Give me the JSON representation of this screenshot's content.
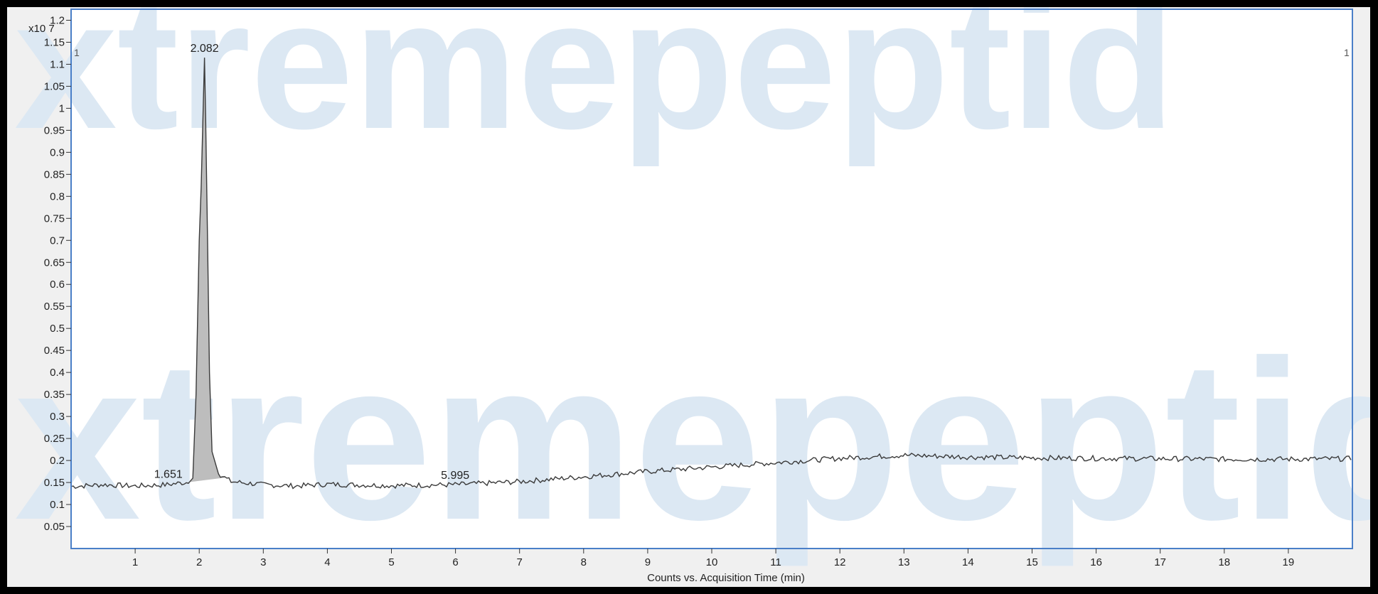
{
  "chart_data": {
    "type": "line",
    "title": "",
    "xlabel": "Counts vs. Acquisition Time (min)",
    "ylabel": "",
    "y_multiplier_label": "x10 7",
    "corner_labels": [
      "1",
      "1"
    ],
    "watermark_text": "xtremepeptid",
    "xlim": [
      0,
      20
    ],
    "ylim": [
      0,
      1.225
    ],
    "x_ticks": [
      "1",
      "2",
      "3",
      "4",
      "5",
      "6",
      "7",
      "8",
      "9",
      "10",
      "11",
      "12",
      "13",
      "14",
      "15",
      "16",
      "17",
      "18",
      "19"
    ],
    "y_ticks": [
      "0.05",
      "0.1",
      "0.15",
      "0.2",
      "0.25",
      "0.3",
      "0.35",
      "0.4",
      "0.45",
      "0.5",
      "0.55",
      "0.6",
      "0.65",
      "0.7",
      "0.75",
      "0.8",
      "0.85",
      "0.9",
      "0.95",
      "1",
      "1.05",
      "1.1",
      "1.15",
      "1.2"
    ],
    "series": [
      {
        "x": [
          0,
          0.5,
          1,
          1.5,
          1.651,
          1.8,
          1.9,
          1.95,
          2.0,
          2.03,
          2.06,
          2.082,
          2.1,
          2.13,
          2.16,
          2.2,
          2.3,
          2.5,
          3,
          3.5,
          4,
          5,
          5.995,
          7,
          8,
          9,
          10,
          11,
          12,
          13,
          14,
          15,
          16,
          17,
          18,
          19,
          20
        ],
        "y": [
          0.141,
          0.145,
          0.142,
          0.145,
          0.148,
          0.15,
          0.16,
          0.35,
          0.7,
          0.82,
          0.99,
          1.115,
          0.98,
          0.7,
          0.4,
          0.22,
          0.17,
          0.152,
          0.145,
          0.142,
          0.146,
          0.143,
          0.145,
          0.152,
          0.163,
          0.175,
          0.185,
          0.195,
          0.205,
          0.212,
          0.208,
          0.206,
          0.205,
          0.204,
          0.203,
          0.203,
          0.204
        ]
      }
    ],
    "peak_fill": {
      "x_start": 1.8,
      "x_end": 2.4,
      "color": "#bdbdbd"
    },
    "peak_labels": [
      {
        "text": "2.082",
        "x": 2.082,
        "y": 1.115
      },
      {
        "text": "1.651",
        "x": 1.651,
        "y": 0.148
      },
      {
        "text": "5.995",
        "x": 5.995,
        "y": 0.145
      }
    ],
    "colors": {
      "plot_border": "#4a7fc8",
      "line": "#3a3a3a",
      "background": "#ffffff",
      "frame": "#f0f0f0"
    },
    "grid": false
  }
}
